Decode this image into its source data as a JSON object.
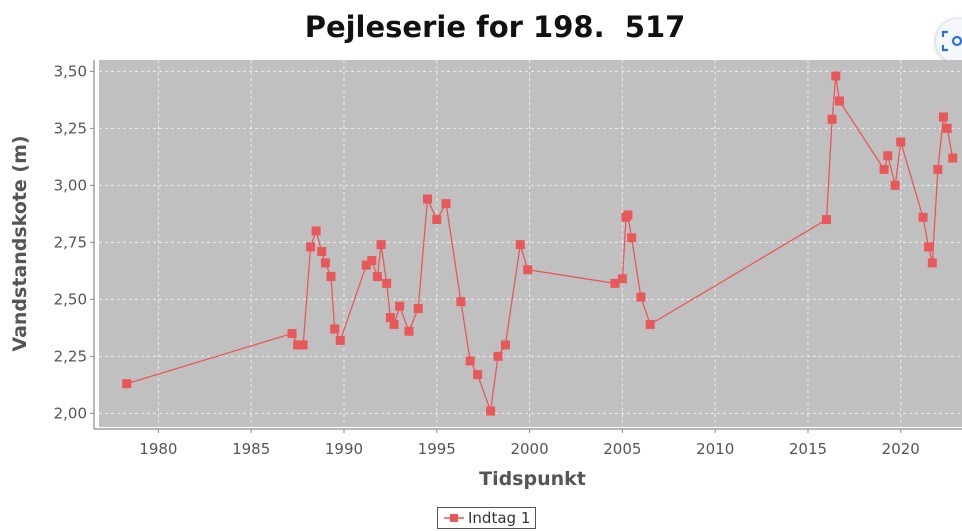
{
  "chart_data": {
    "type": "line",
    "title": "Pejleserie for 198.  517",
    "xlabel": "Tidspunkt",
    "ylabel": "Vandstandskote (m)",
    "xlim": [
      1976.8,
      2023.3
    ],
    "ylim": [
      1.94,
      3.55
    ],
    "xticks": [
      1980,
      1985,
      1990,
      1995,
      2000,
      2005,
      2010,
      2015,
      2020
    ],
    "yticks": [
      2.0,
      2.25,
      2.5,
      2.75,
      3.0,
      3.25,
      3.5
    ],
    "ytick_labels": [
      "2,00",
      "2,25",
      "2,50",
      "2,75",
      "3,00",
      "3,25",
      "3,50"
    ],
    "grid": true,
    "legend_position": "bottom-center",
    "series": [
      {
        "name": "Indtag 1",
        "color": "#e8585a",
        "x": [
          1978.3,
          1987.2,
          1987.5,
          1987.8,
          1988.2,
          1988.5,
          1988.8,
          1989.0,
          1989.3,
          1989.5,
          1989.8,
          1991.2,
          1991.5,
          1991.8,
          1992.0,
          1992.3,
          1992.5,
          1992.7,
          1993.0,
          1993.5,
          1994.0,
          1994.5,
          1995.0,
          1995.5,
          1996.3,
          1996.8,
          1997.2,
          1997.9,
          1998.3,
          1998.7,
          1999.5,
          1999.9,
          2004.6,
          2005.0,
          2005.2,
          2005.3,
          2005.5,
          2006.0,
          2006.5,
          2016.0,
          2016.3,
          2016.5,
          2016.7,
          2019.1,
          2019.3,
          2019.7,
          2020.0,
          2021.2,
          2021.5,
          2021.7,
          2022.0,
          2022.3,
          2022.5,
          2022.8
        ],
        "y": [
          2.13,
          2.35,
          2.3,
          2.3,
          2.73,
          2.8,
          2.71,
          2.66,
          2.6,
          2.37,
          2.32,
          2.65,
          2.67,
          2.6,
          2.74,
          2.57,
          2.42,
          2.39,
          2.47,
          2.36,
          2.46,
          2.94,
          2.85,
          2.92,
          2.49,
          2.23,
          2.17,
          2.01,
          2.25,
          2.3,
          2.74,
          2.63,
          2.57,
          2.59,
          2.86,
          2.87,
          2.77,
          2.51,
          2.39,
          2.85,
          3.29,
          3.48,
          3.37,
          3.07,
          3.13,
          3.0,
          3.19,
          2.86,
          2.73,
          2.66,
          3.07,
          3.3,
          3.25,
          3.12
        ]
      }
    ]
  },
  "colors": {
    "plot_background": "#c0c0c0",
    "grid": "#ededed",
    "series": "#e8585a",
    "axis_text": "#555555"
  },
  "toolbar": {
    "icon": "zoom-fit-icon"
  }
}
